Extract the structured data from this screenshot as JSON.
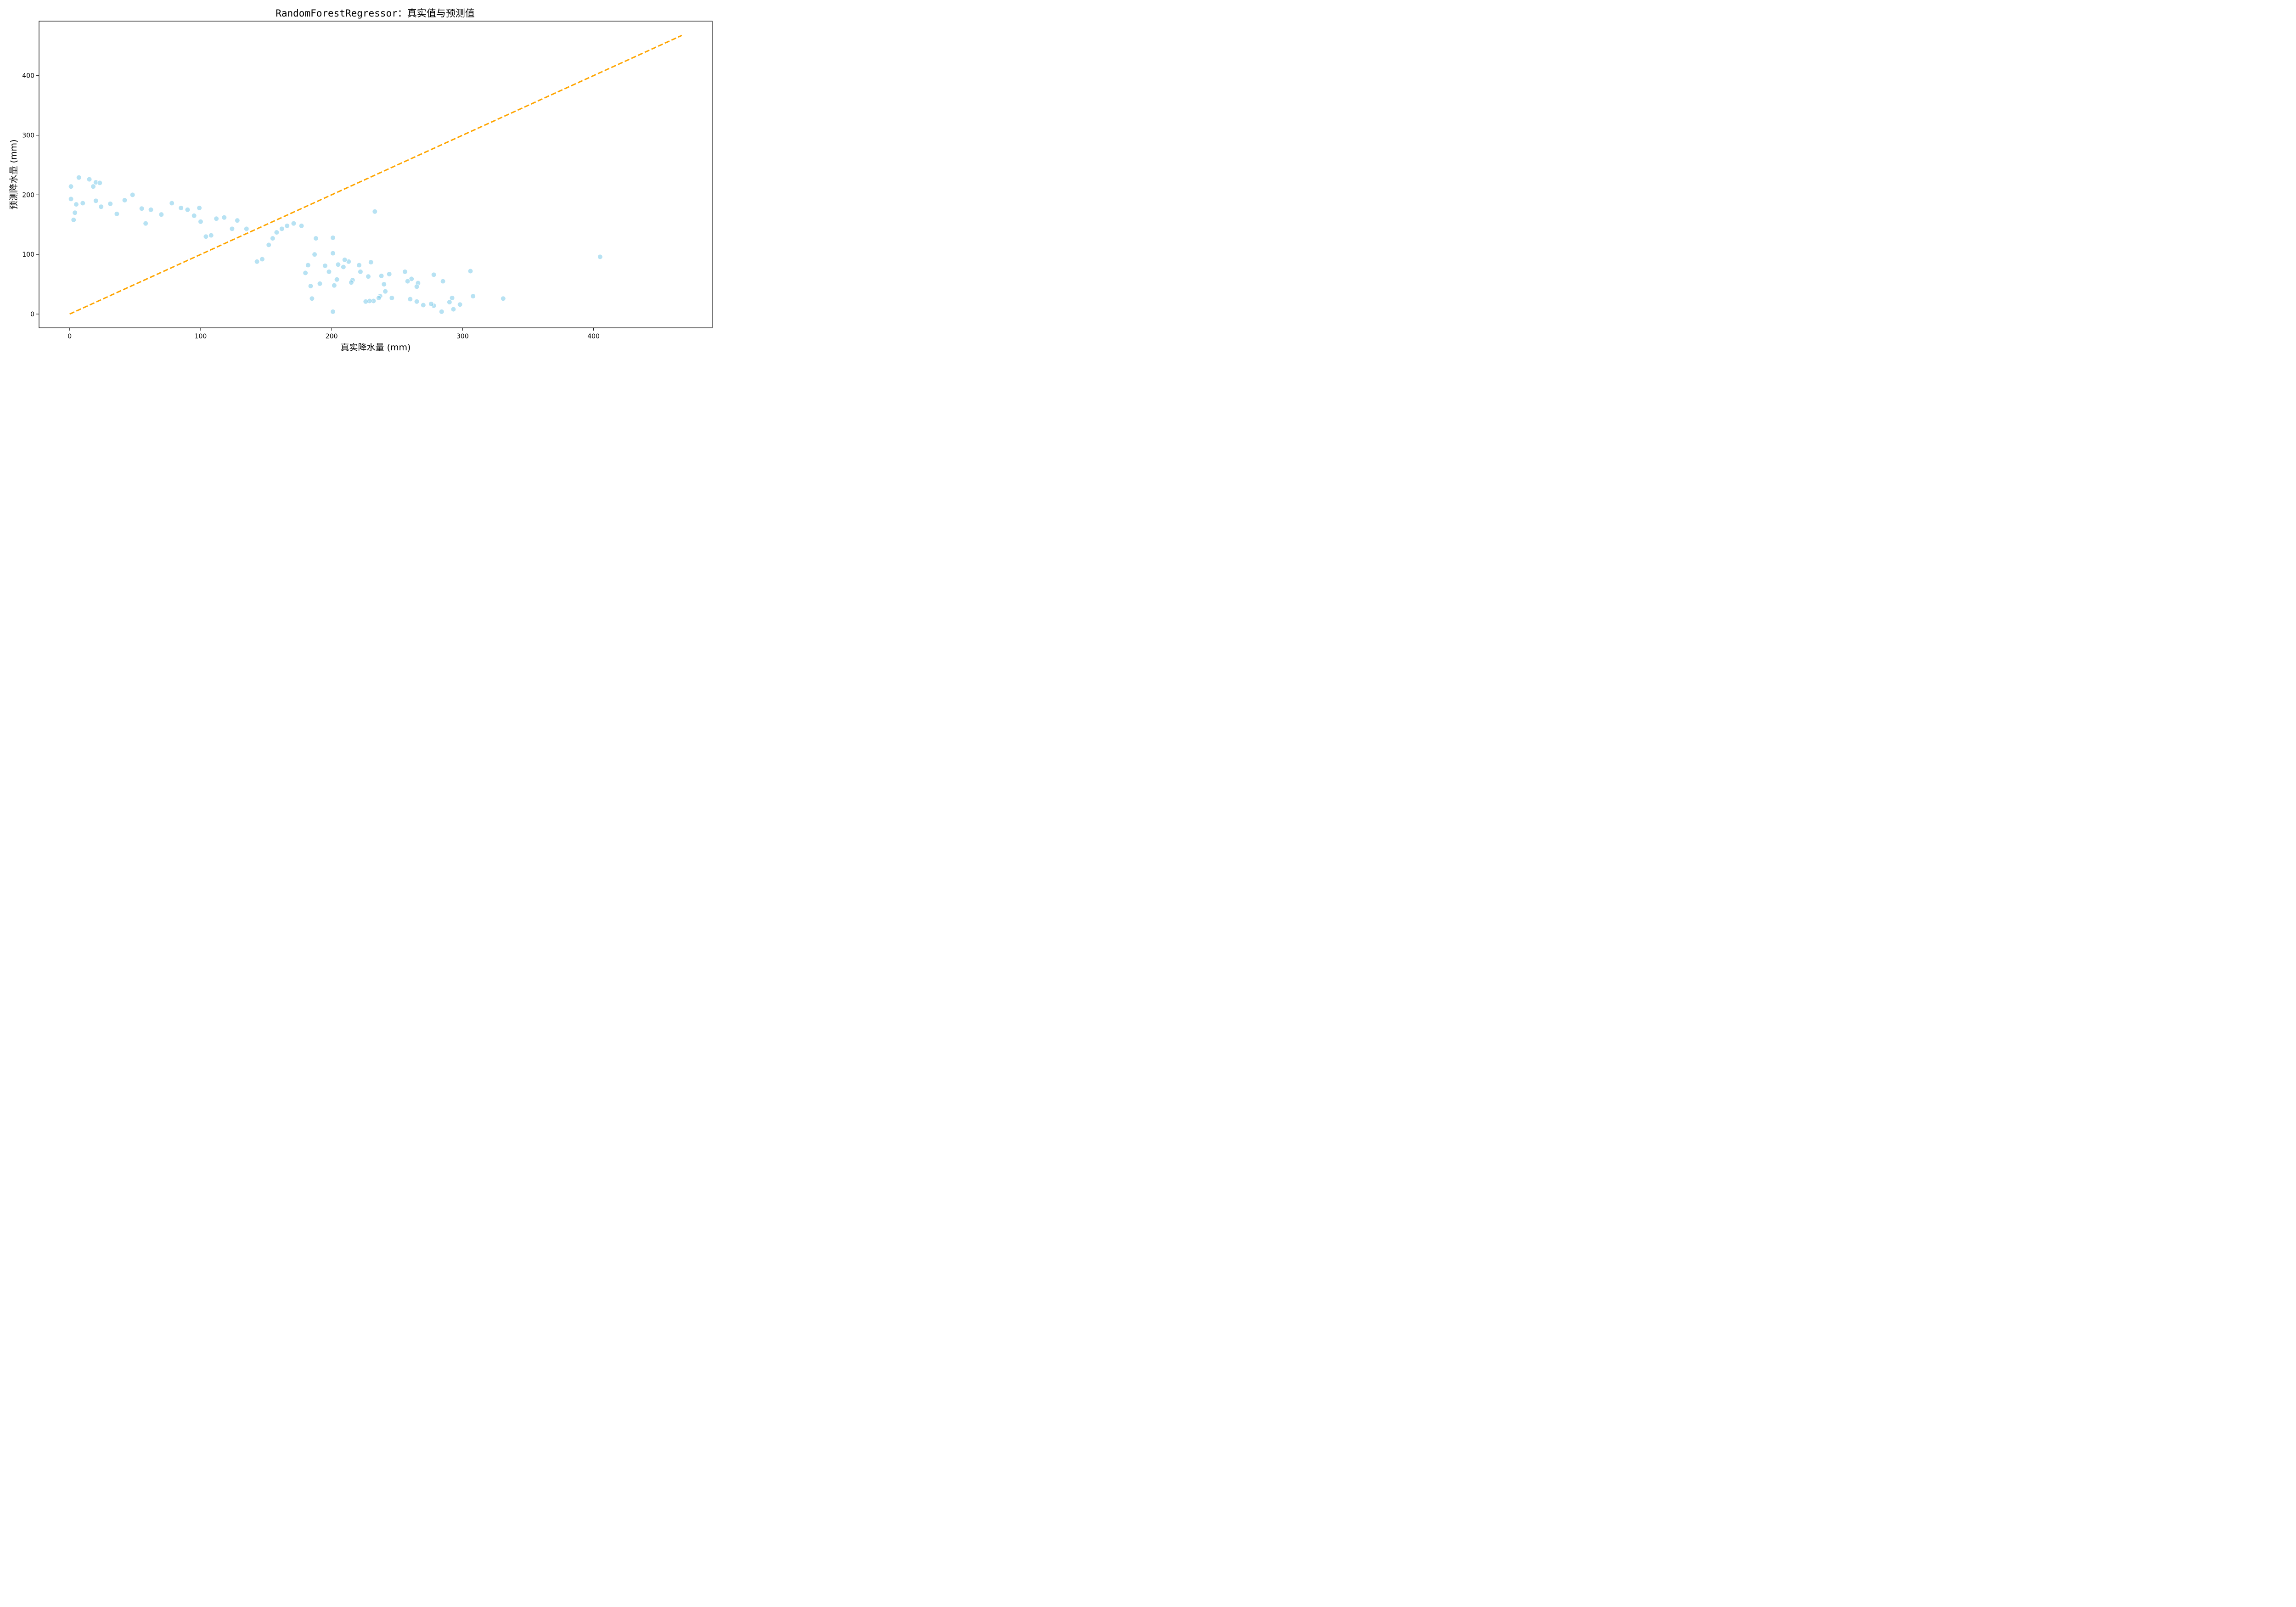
{
  "chart_data": {
    "type": "scatter",
    "title": "RandomForestRegressor：真实值与预测值",
    "xlabel": "真实降水量 (mm)",
    "ylabel": "预测降水量 (mm)",
    "xlim": [
      -23.4,
      490.6
    ],
    "ylim": [
      -23.1,
      491.4
    ],
    "xticks": [
      0,
      100,
      200,
      300,
      400
    ],
    "yticks": [
      0,
      100,
      200,
      300,
      400
    ],
    "grid": false,
    "point_color": "#87ceeb",
    "reference_line": {
      "x": [
        0,
        467.4
      ],
      "y": [
        0,
        467.4
      ],
      "style": "dashed",
      "color": "#ffa500"
    },
    "series": [
      {
        "values": [
          [
            1,
            214
          ],
          [
            1,
            193
          ],
          [
            7,
            229
          ],
          [
            15,
            226
          ],
          [
            20,
            221
          ],
          [
            23,
            220
          ],
          [
            18,
            214
          ],
          [
            48,
            200
          ],
          [
            42,
            191
          ],
          [
            20,
            190
          ],
          [
            5,
            184
          ],
          [
            31,
            185
          ],
          [
            78,
            186
          ],
          [
            85,
            178
          ],
          [
            99,
            178
          ],
          [
            233,
            172
          ],
          [
            405,
            96
          ],
          [
            331,
            26
          ],
          [
            308,
            30
          ],
          [
            306,
            72
          ],
          [
            298,
            16
          ],
          [
            293,
            8
          ],
          [
            292,
            27
          ],
          [
            290,
            20
          ],
          [
            285,
            55
          ],
          [
            284,
            4
          ],
          [
            278,
            66
          ],
          [
            278,
            14
          ],
          [
            276,
            17
          ],
          [
            270,
            15
          ],
          [
            266,
            52
          ],
          [
            265,
            46
          ],
          [
            265,
            21
          ],
          [
            261,
            59
          ],
          [
            260,
            25
          ],
          [
            258,
            55
          ],
          [
            256,
            71
          ],
          [
            246,
            27
          ],
          [
            244,
            67
          ],
          [
            241,
            38
          ],
          [
            240,
            50
          ],
          [
            238,
            64
          ],
          [
            237,
            30
          ],
          [
            236,
            27
          ],
          [
            232,
            22
          ],
          [
            230,
            87
          ],
          [
            229,
            22
          ],
          [
            228,
            63
          ],
          [
            226,
            21
          ],
          [
            222,
            71
          ],
          [
            221,
            82
          ],
          [
            216,
            57
          ],
          [
            215,
            53
          ],
          [
            213,
            88
          ],
          [
            210,
            91
          ],
          [
            209,
            79
          ],
          [
            205,
            83
          ],
          [
            204,
            58
          ],
          [
            202,
            48
          ],
          [
            201,
            128
          ],
          [
            201,
            102
          ],
          [
            201,
            4
          ],
          [
            198,
            71
          ],
          [
            195,
            81
          ],
          [
            191,
            51
          ],
          [
            188,
            127
          ],
          [
            187,
            100
          ],
          [
            185,
            26
          ],
          [
            184,
            47
          ],
          [
            182,
            82
          ],
          [
            180,
            69
          ],
          [
            177,
            148
          ],
          [
            171,
            152
          ],
          [
            166,
            148
          ],
          [
            162,
            143
          ],
          [
            158,
            137
          ],
          [
            155,
            127
          ],
          [
            152,
            116
          ],
          [
            147,
            92
          ],
          [
            143,
            88
          ],
          [
            135,
            143
          ],
          [
            128,
            157
          ],
          [
            124,
            143
          ],
          [
            118,
            162
          ],
          [
            112,
            160
          ],
          [
            108,
            132
          ],
          [
            104,
            130
          ],
          [
            100,
            155
          ],
          [
            95,
            165
          ],
          [
            90,
            175
          ],
          [
            62,
            175
          ],
          [
            70,
            167
          ],
          [
            58,
            152
          ],
          [
            55,
            177
          ],
          [
            36,
            168
          ],
          [
            24,
            180
          ],
          [
            10,
            186
          ],
          [
            4,
            170
          ],
          [
            3,
            158
          ]
        ]
      }
    ]
  }
}
